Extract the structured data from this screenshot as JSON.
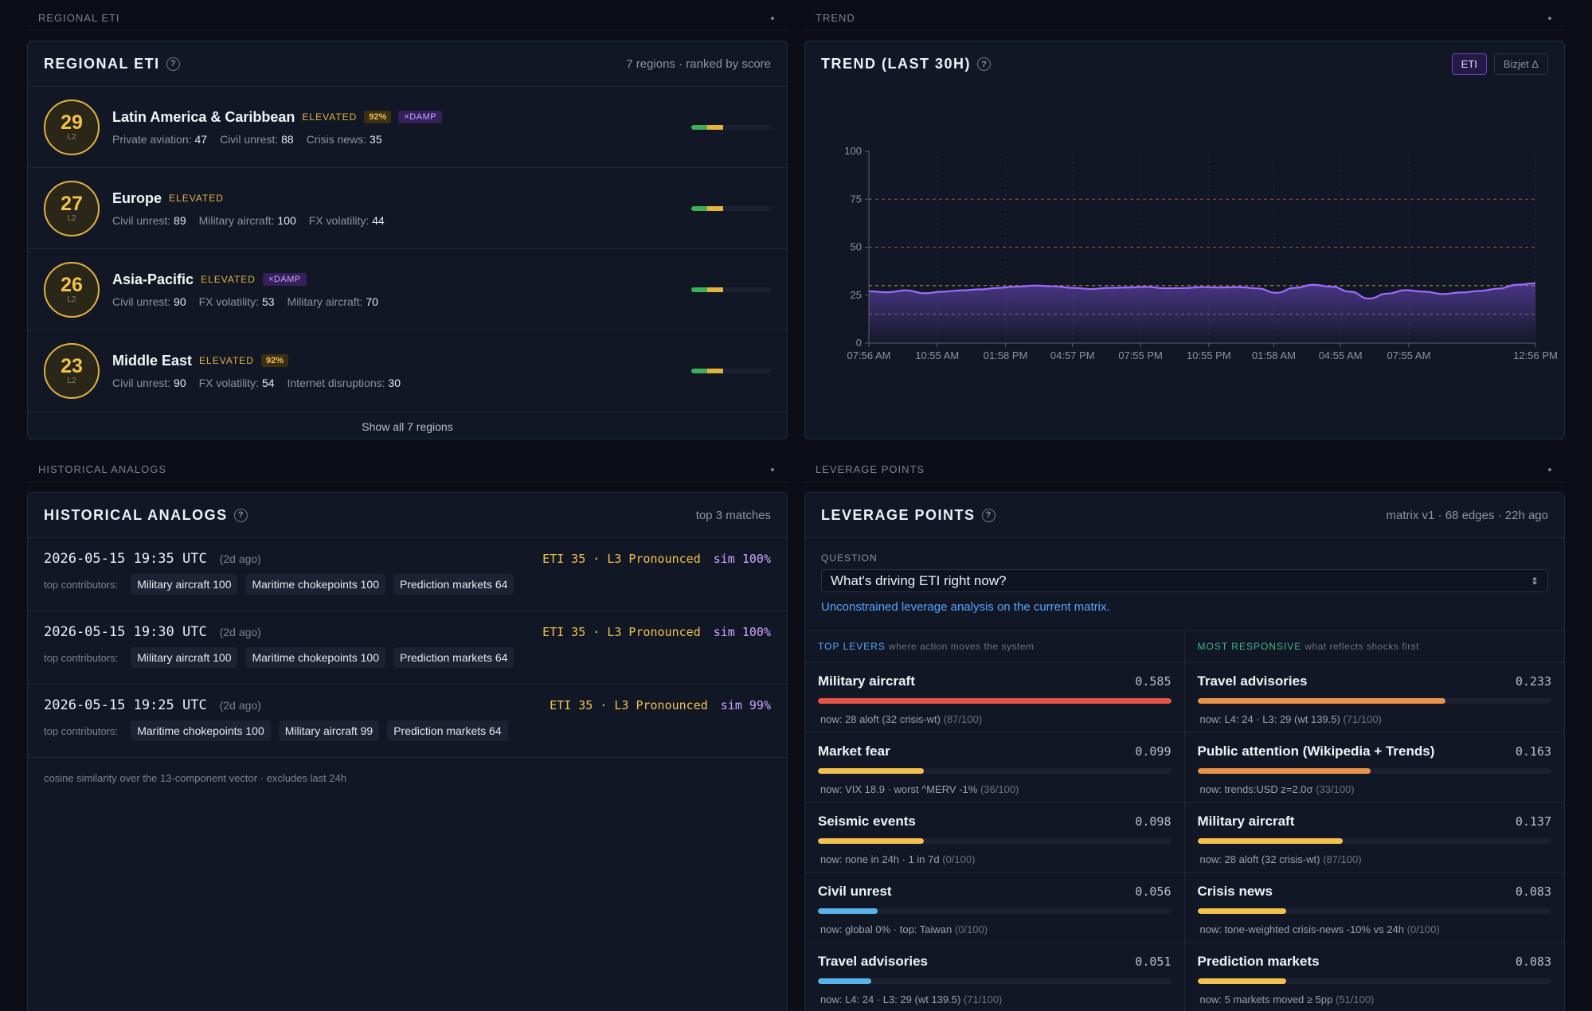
{
  "sections": {
    "regional": "REGIONAL ETI",
    "trend": "TREND",
    "analogs": "HISTORICAL ANALOGS",
    "leverage": "LEVERAGE POINTS"
  },
  "regional": {
    "title": "REGIONAL ETI",
    "meta": "7 regions · ranked by score",
    "show_all": "Show all 7 regions",
    "regions": [
      {
        "score": "29",
        "level": "L2",
        "name": "Latin America & Caribbean",
        "status": "ELEVATED",
        "pct": "92%",
        "damp": "×DAMP",
        "m1_label": "Private aviation:",
        "m1_val": "47",
        "m2_label": "Civil unrest:",
        "m2_val": "88",
        "m3_label": "Crisis news:",
        "m3_val": "35"
      },
      {
        "score": "27",
        "level": "L2",
        "name": "Europe",
        "status": "ELEVATED",
        "pct": "",
        "damp": "",
        "m1_label": "Civil unrest:",
        "m1_val": "89",
        "m2_label": "Military aircraft:",
        "m2_val": "100",
        "m3_label": "FX volatility:",
        "m3_val": "44"
      },
      {
        "score": "26",
        "level": "L2",
        "name": "Asia-Pacific",
        "status": "ELEVATED",
        "pct": "",
        "damp": "×DAMP",
        "m1_label": "Civil unrest:",
        "m1_val": "90",
        "m2_label": "FX volatility:",
        "m2_val": "53",
        "m3_label": "Military aircraft:",
        "m3_val": "70"
      },
      {
        "score": "23",
        "level": "L2",
        "name": "Middle East",
        "status": "ELEVATED",
        "pct": "92%",
        "damp": "",
        "m1_label": "Civil unrest:",
        "m1_val": "90",
        "m2_label": "FX volatility:",
        "m2_val": "54",
        "m3_label": "Internet disruptions:",
        "m3_val": "30"
      }
    ]
  },
  "trend": {
    "title": "TREND (LAST 30H)",
    "toggle_eti": "ETI",
    "toggle_bizjet": "Bizjet Δ"
  },
  "chart_data": {
    "type": "area",
    "x_ticks": [
      "07:56 AM",
      "10:55 AM",
      "01:58 PM",
      "04:57 PM",
      "07:55 PM",
      "10:55 PM",
      "01:58 AM",
      "04:55 AM",
      "07:55 AM",
      "12:56 PM"
    ],
    "y_ticks": [
      "0",
      "25",
      "50",
      "75",
      "100"
    ],
    "ylim": [
      0,
      100
    ],
    "thresholds": [
      15,
      30,
      50,
      75
    ],
    "series": [
      {
        "values": [
          27,
          26.5,
          27.5,
          26,
          26.8,
          27.5,
          28,
          28.8,
          29.5,
          30,
          29.6,
          28.8,
          28.2,
          28.8,
          29,
          29.3,
          28.6,
          28.7,
          29.2,
          29,
          29.2,
          28.5,
          26.2,
          28.8,
          30.4,
          29.4,
          26.8,
          23.2,
          25.8,
          27.6,
          26.8,
          25.6,
          26.4,
          27.2,
          28.4,
          30.4,
          31.2
        ]
      }
    ]
  },
  "analogs": {
    "title": "HISTORICAL ANALOGS",
    "meta": "top 3 matches",
    "contrib_label": "top contributors:",
    "footer": "cosine similarity over the 13-component vector · excludes last 24h",
    "rows": [
      {
        "time": "2026-05-15 19:35 UTC",
        "ago": "(2d ago)",
        "eti": "ETI 35 · L3 Pronounced",
        "sim": "sim 100%",
        "chips": [
          "Military aircraft 100",
          "Maritime chokepoints 100",
          "Prediction markets 64"
        ]
      },
      {
        "time": "2026-05-15 19:30 UTC",
        "ago": "(2d ago)",
        "eti": "ETI 35 · L3 Pronounced",
        "sim": "sim 100%",
        "chips": [
          "Military aircraft 100",
          "Maritime chokepoints 100",
          "Prediction markets 64"
        ]
      },
      {
        "time": "2026-05-15 19:25 UTC",
        "ago": "(2d ago)",
        "eti": "ETI 35 · L3 Pronounced",
        "sim": "sim 99%",
        "chips": [
          "Maritime chokepoints 100",
          "Military aircraft 99",
          "Prediction markets 64"
        ]
      }
    ]
  },
  "leverage": {
    "title": "LEVERAGE POINTS",
    "meta": "matrix v1 · 68 edges · 22h ago",
    "question_label": "QUESTION",
    "question_value": "What's driving ETI right now?",
    "question_note": "Unconstrained leverage analysis on the current matrix.",
    "left_head": "TOP LEVERS",
    "left_sub": "where action moves the system",
    "right_head": "MOST RESPONSIVE",
    "right_sub": "what reflects shocks first",
    "levers": [
      {
        "name": "Military aircraft",
        "score": "0.585",
        "fill": 1.0,
        "color": "#e5534b",
        "now": "now: 28 aloft (32 crisis-wt)",
        "dim": "(87/100)"
      },
      {
        "name": "Market fear",
        "score": "0.099",
        "fill": 0.3,
        "color": "#f2c14e",
        "now": "now: VIX 18.9 · worst ^MERV -1%",
        "dim": "(36/100)"
      },
      {
        "name": "Seismic events",
        "score": "0.098",
        "fill": 0.3,
        "color": "#f2c14e",
        "now": "now: none in 24h · 1 in 7d",
        "dim": "(0/100)"
      },
      {
        "name": "Civil unrest",
        "score": "0.056",
        "fill": 0.17,
        "color": "#58b3e8",
        "now": "now: global 0% · top: Taiwan",
        "dim": "(0/100)"
      },
      {
        "name": "Travel advisories",
        "score": "0.051",
        "fill": 0.15,
        "color": "#58b3e8",
        "now": "now: L4: 24 · L3: 29 (wt 139.5)",
        "dim": "(71/100)"
      }
    ],
    "responsive": [
      {
        "name": "Travel advisories",
        "score": "0.233",
        "fill": 0.7,
        "color": "#e8924a",
        "now": "now: L4: 24 · L3: 29 (wt 139.5)",
        "dim": "(71/100)"
      },
      {
        "name": "Public attention (Wikipedia + Trends)",
        "score": "0.163",
        "fill": 0.49,
        "color": "#e8924a",
        "now": "now: trends:USD z=2.0σ",
        "dim": "(33/100)"
      },
      {
        "name": "Military aircraft",
        "score": "0.137",
        "fill": 0.41,
        "color": "#f2c14e",
        "now": "now: 28 aloft (32 crisis-wt)",
        "dim": "(87/100)"
      },
      {
        "name": "Crisis news",
        "score": "0.083",
        "fill": 0.25,
        "color": "#f2c14e",
        "now": "now: tone-weighted crisis-news -10% vs 24h",
        "dim": "(0/100)"
      },
      {
        "name": "Prediction markets",
        "score": "0.083",
        "fill": 0.25,
        "color": "#f2c14e",
        "now": "now: 5 markets moved ≥ 5pp",
        "dim": "(51/100)"
      }
    ]
  }
}
